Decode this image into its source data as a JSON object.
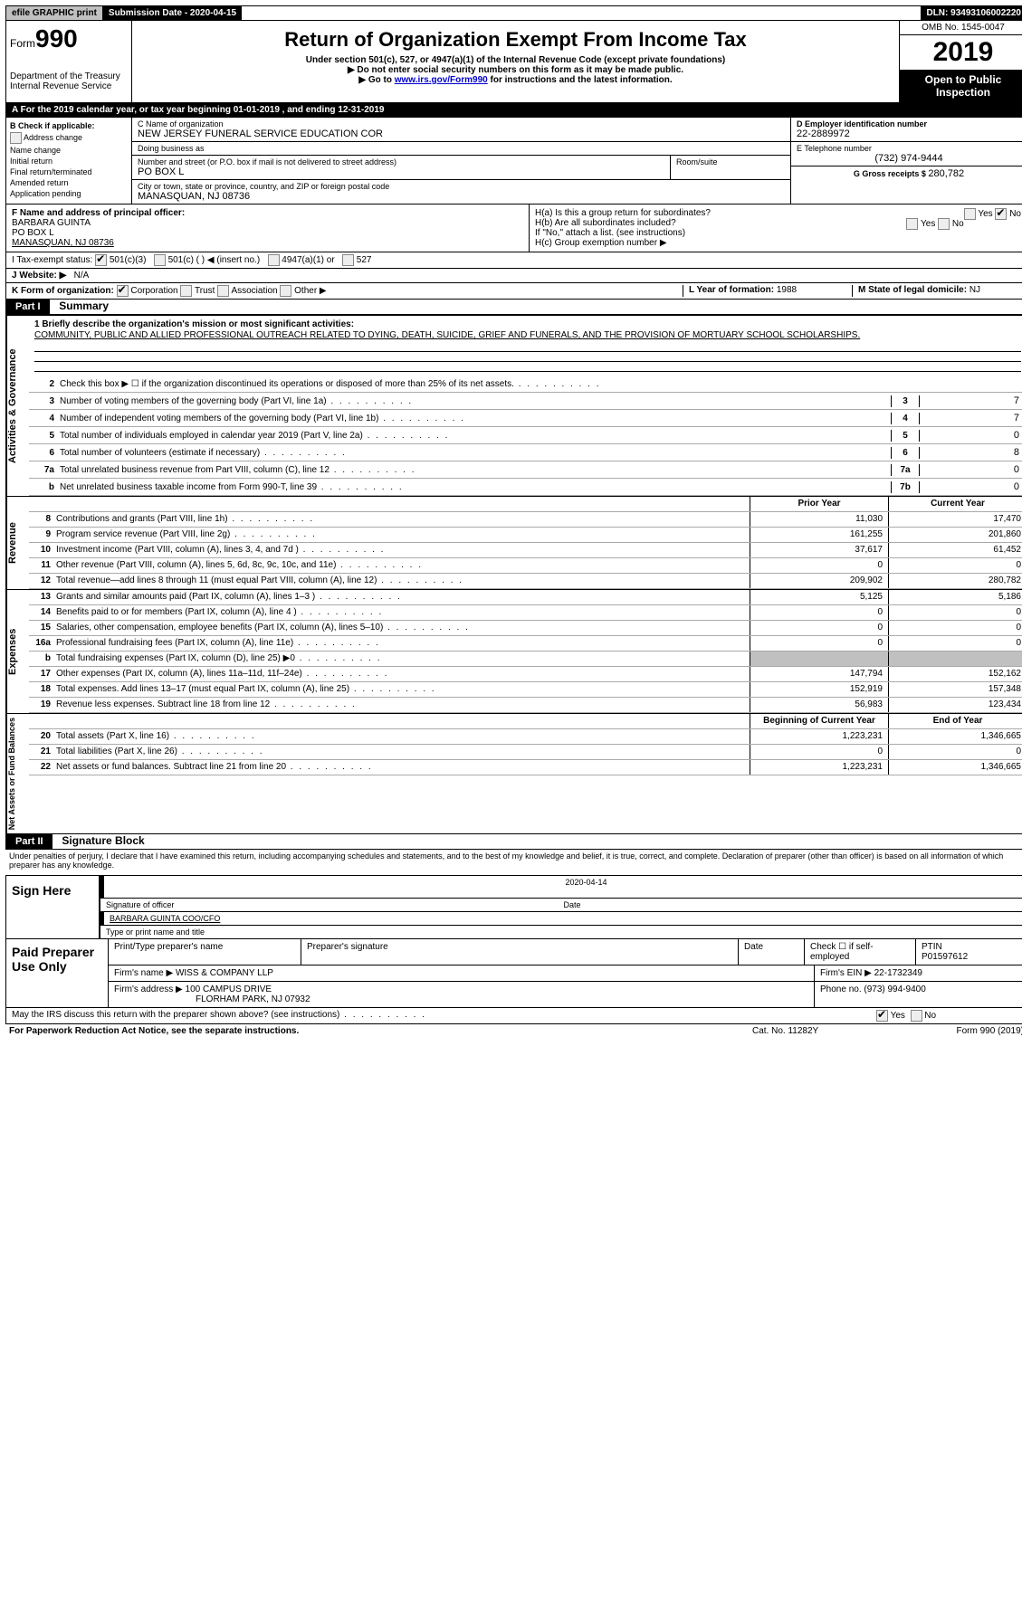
{
  "top": {
    "efile": "efile GRAPHIC print",
    "subdate_label": "Submission Date - ",
    "subdate": "2020-04-15",
    "dln": "DLN: 93493106002220"
  },
  "header": {
    "form_prefix": "Form",
    "form_num": "990",
    "dept": "Department of the Treasury",
    "irs": "Internal Revenue Service",
    "title": "Return of Organization Exempt From Income Tax",
    "subtitle": "Under section 501(c), 527, or 4947(a)(1) of the Internal Revenue Code (except private foundations)",
    "note1": "▶ Do not enter social security numbers on this form as it may be made public.",
    "note2_pre": "▶ Go to ",
    "note2_link": "www.irs.gov/Form990",
    "note2_post": " for instructions and the latest information.",
    "omb": "OMB No. 1545-0047",
    "year": "2019",
    "open": "Open to Public Inspection"
  },
  "periodA": "A   For the 2019 calendar year, or tax year beginning 01-01-2019       , and ending 12-31-2019",
  "boxB": {
    "title": "B  Check if applicable:",
    "items": [
      "Address change",
      "Name change",
      "Initial return",
      "Final return/terminated",
      "Amended return",
      "Application pending"
    ]
  },
  "boxC": {
    "name_lbl": "C Name of organization",
    "name": "NEW JERSEY FUNERAL SERVICE EDUCATION COR",
    "dba_lbl": "Doing business as",
    "dba": "",
    "street_lbl": "Number and street (or P.O. box if mail is not delivered to street address)",
    "street": "PO BOX L",
    "room_lbl": "Room/suite",
    "city_lbl": "City or town, state or province, country, and ZIP or foreign postal code",
    "city": "MANASQUAN, NJ  08736"
  },
  "boxD": {
    "lbl": "D Employer identification number",
    "val": "22-2889972"
  },
  "boxE": {
    "lbl": "E Telephone number",
    "val": "(732) 974-9444"
  },
  "boxG": {
    "lbl": "G Gross receipts $ ",
    "val": "280,782"
  },
  "boxF": {
    "lbl": "F  Name and address of principal officer:",
    "name": "BARBARA GUINTA",
    "addr1": "PO BOX L",
    "addr2": "MANASQUAN, NJ  08736"
  },
  "boxH": {
    "a": "H(a)   Is this a group return for subordinates?",
    "b": "H(b)   Are all subordinates included?",
    "bnote": "If \"No,\" attach a list. (see instructions)",
    "c": "H(c)   Group exemption number ▶",
    "yes": "Yes",
    "no": "No"
  },
  "taxexempt": {
    "lbl": "I     Tax-exempt status:",
    "c3": "501(c)(3)",
    "c": "501(c) (  ) ◀ (insert no.)",
    "a1": "4947(a)(1) or",
    "s527": "527"
  },
  "website": {
    "lbl": "J   Website: ▶",
    "val": "N/A"
  },
  "lineK": {
    "lbl": "K Form of organization:",
    "opts": [
      "Corporation",
      "Trust",
      "Association",
      "Other ▶"
    ]
  },
  "lineL": {
    "lbl": "L Year of formation: ",
    "val": "1988"
  },
  "lineM": {
    "lbl": "M State of legal domicile: ",
    "val": "NJ"
  },
  "part1": {
    "bar": "Part I",
    "title": "Summary"
  },
  "mission": {
    "q": "1  Briefly describe the organization's mission or most significant activities:",
    "text": "COMMUNITY, PUBLIC AND ALLIED PROFESSIONAL OUTREACH RELATED TO DYING, DEATH, SUICIDE, GRIEF AND FUNERALS, AND THE PROVISION OF MORTUARY SCHOOL SCHOLARSHIPS."
  },
  "gov_rows": [
    {
      "n": "2",
      "d": "Check this box ▶ ☐ if the organization discontinued its operations or disposed of more than 25% of its net assets."
    },
    {
      "n": "3",
      "d": "Number of voting members of the governing body (Part VI, line 1a)",
      "box": "3",
      "v": "7"
    },
    {
      "n": "4",
      "d": "Number of independent voting members of the governing body (Part VI, line 1b)",
      "box": "4",
      "v": "7"
    },
    {
      "n": "5",
      "d": "Total number of individuals employed in calendar year 2019 (Part V, line 2a)",
      "box": "5",
      "v": "0"
    },
    {
      "n": "6",
      "d": "Total number of volunteers (estimate if necessary)",
      "box": "6",
      "v": "8"
    },
    {
      "n": "7a",
      "d": "Total unrelated business revenue from Part VIII, column (C), line 12",
      "box": "7a",
      "v": "0"
    },
    {
      "n": "b",
      "d": "Net unrelated business taxable income from Form 990-T, line 39",
      "box": "7b",
      "v": "0"
    }
  ],
  "fin_head": {
    "c1": "Prior Year",
    "c2": "Current Year"
  },
  "rev_label": "Revenue",
  "rev_rows": [
    {
      "n": "8",
      "d": "Contributions and grants (Part VIII, line 1h)",
      "c1": "11,030",
      "c2": "17,470"
    },
    {
      "n": "9",
      "d": "Program service revenue (Part VIII, line 2g)",
      "c1": "161,255",
      "c2": "201,860"
    },
    {
      "n": "10",
      "d": "Investment income (Part VIII, column (A), lines 3, 4, and 7d )",
      "c1": "37,617",
      "c2": "61,452"
    },
    {
      "n": "11",
      "d": "Other revenue (Part VIII, column (A), lines 5, 6d, 8c, 9c, 10c, and 11e)",
      "c1": "0",
      "c2": "0"
    },
    {
      "n": "12",
      "d": "Total revenue—add lines 8 through 11 (must equal Part VIII, column (A), line 12)",
      "c1": "209,902",
      "c2": "280,782"
    }
  ],
  "exp_label": "Expenses",
  "exp_rows": [
    {
      "n": "13",
      "d": "Grants and similar amounts paid (Part IX, column (A), lines 1–3 )",
      "c1": "5,125",
      "c2": "5,186"
    },
    {
      "n": "14",
      "d": "Benefits paid to or for members (Part IX, column (A), line 4 )",
      "c1": "0",
      "c2": "0"
    },
    {
      "n": "15",
      "d": "Salaries, other compensation, employee benefits (Part IX, column (A), lines 5–10)",
      "c1": "0",
      "c2": "0"
    },
    {
      "n": "16a",
      "d": "Professional fundraising fees (Part IX, column (A), line 11e)",
      "c1": "0",
      "c2": "0"
    },
    {
      "n": "b",
      "d": "Total fundraising expenses (Part IX, column (D), line 25) ▶0",
      "c1": "shade",
      "c2": "shade"
    },
    {
      "n": "17",
      "d": "Other expenses (Part IX, column (A), lines 11a–11d, 11f–24e)",
      "c1": "147,794",
      "c2": "152,162"
    },
    {
      "n": "18",
      "d": "Total expenses. Add lines 13–17 (must equal Part IX, column (A), line 25)",
      "c1": "152,919",
      "c2": "157,348"
    },
    {
      "n": "19",
      "d": "Revenue less expenses. Subtract line 18 from line 12",
      "c1": "56,983",
      "c2": "123,434"
    }
  ],
  "na_label": "Net Assets or Fund Balances",
  "na_head": {
    "c1": "Beginning of Current Year",
    "c2": "End of Year"
  },
  "na_rows": [
    {
      "n": "20",
      "d": "Total assets (Part X, line 16)",
      "c1": "1,223,231",
      "c2": "1,346,665"
    },
    {
      "n": "21",
      "d": "Total liabilities (Part X, line 26)",
      "c1": "0",
      "c2": "0"
    },
    {
      "n": "22",
      "d": "Net assets or fund balances. Subtract line 21 from line 20",
      "c1": "1,223,231",
      "c2": "1,346,665"
    }
  ],
  "part2": {
    "bar": "Part II",
    "title": "Signature Block"
  },
  "perjury": "Under penalties of perjury, I declare that I have examined this return, including accompanying schedules and statements, and to the best of my knowledge and belief, it is true, correct, and complete. Declaration of preparer (other than officer) is based on all information of which preparer has any knowledge.",
  "sign": {
    "here": "Sign Here",
    "sig_lbl": "Signature of officer",
    "date": "2020-04-14",
    "date_lbl": "Date",
    "name": "BARBARA GUINTA  COO/CFO",
    "name_lbl": "Type or print name and title"
  },
  "prep": {
    "title": "Paid Preparer Use Only",
    "h1": "Print/Type preparer's name",
    "h2": "Preparer's signature",
    "h3": "Date",
    "h4_lbl": "Check ☐ if self-employed",
    "h5_lbl": "PTIN",
    "h5": "P01597612",
    "firm_lbl": "Firm's name     ▶ ",
    "firm": "WISS & COMPANY LLP",
    "ein_lbl": "Firm's EIN ▶ ",
    "ein": "22-1732349",
    "addr_lbl": "Firm's address ▶ ",
    "addr1": "100 CAMPUS DRIVE",
    "addr2": "FLORHAM PARK, NJ  07932",
    "phone_lbl": "Phone no. ",
    "phone": "(973) 994-9400"
  },
  "discuss": "May the IRS discuss this return with the preparer shown above? (see instructions)",
  "footer": {
    "left": "For Paperwork Reduction Act Notice, see the separate instructions.",
    "mid": "Cat. No. 11282Y",
    "right": "Form 990 (2019)"
  },
  "gov_label": "Activities & Governance"
}
